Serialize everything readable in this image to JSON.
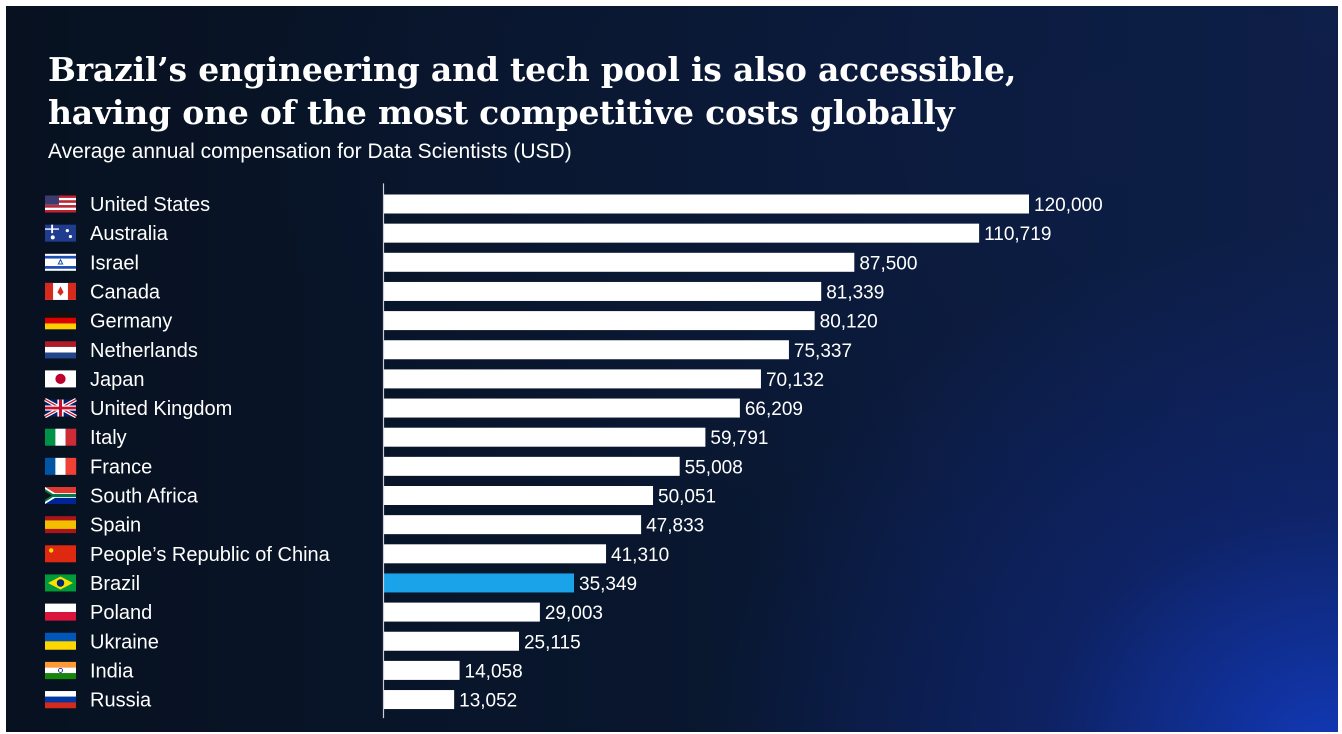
{
  "header": {
    "title_line1": "Brazil’s engineering and tech pool is also accessible,",
    "title_line2": "having one of the most competitive costs globally",
    "subtitle": "Average annual compensation for Data Scientists (USD)"
  },
  "colors": {
    "bar": "#ffffff",
    "highlight": "#1aa3e8",
    "axis": "#c9ced8",
    "background": "#0a1530"
  },
  "chart_data": {
    "type": "bar",
    "orientation": "horizontal",
    "title": "Brazil’s engineering and tech pool is also accessible, having one of the most competitive costs globally",
    "subtitle": "Average annual compensation for Data Scientists (USD)",
    "xlabel": "",
    "ylabel": "",
    "xlim": [
      0,
      120000
    ],
    "grid": false,
    "legend": "none",
    "highlight_category": "Brazil",
    "categories": [
      "United States",
      "Australia",
      "Israel",
      "Canada",
      "Germany",
      "Netherlands",
      "Japan",
      "United Kingdom",
      "Italy",
      "France",
      "South Africa",
      "Spain",
      "People’s Republic of China",
      "Brazil",
      "Poland",
      "Ukraine",
      "India",
      "Russia"
    ],
    "values": [
      120000,
      110719,
      87500,
      81339,
      80120,
      75337,
      70132,
      66209,
      59791,
      55008,
      50051,
      47833,
      41310,
      35349,
      29003,
      25115,
      14058,
      13052
    ],
    "value_labels": [
      "120,000",
      "110,719",
      "87,500",
      "81,339",
      "80,120",
      "75,337",
      "70,132",
      "66,209",
      "59,791",
      "55,008",
      "50,051",
      "47,833",
      "41,310",
      "35,349",
      "29,003",
      "25,115",
      "14,058",
      "13,052"
    ],
    "flags": [
      "flag-us-icon",
      "flag-australia-icon",
      "flag-israel-icon",
      "flag-canada-icon",
      "flag-germany-icon",
      "flag-netherlands-icon",
      "flag-japan-icon",
      "flag-uk-icon",
      "flag-italy-icon",
      "flag-france-icon",
      "flag-south-africa-icon",
      "flag-spain-icon",
      "flag-china-icon",
      "flag-brazil-icon",
      "flag-poland-icon",
      "flag-ukraine-icon",
      "flag-india-icon",
      "flag-russia-icon"
    ]
  }
}
